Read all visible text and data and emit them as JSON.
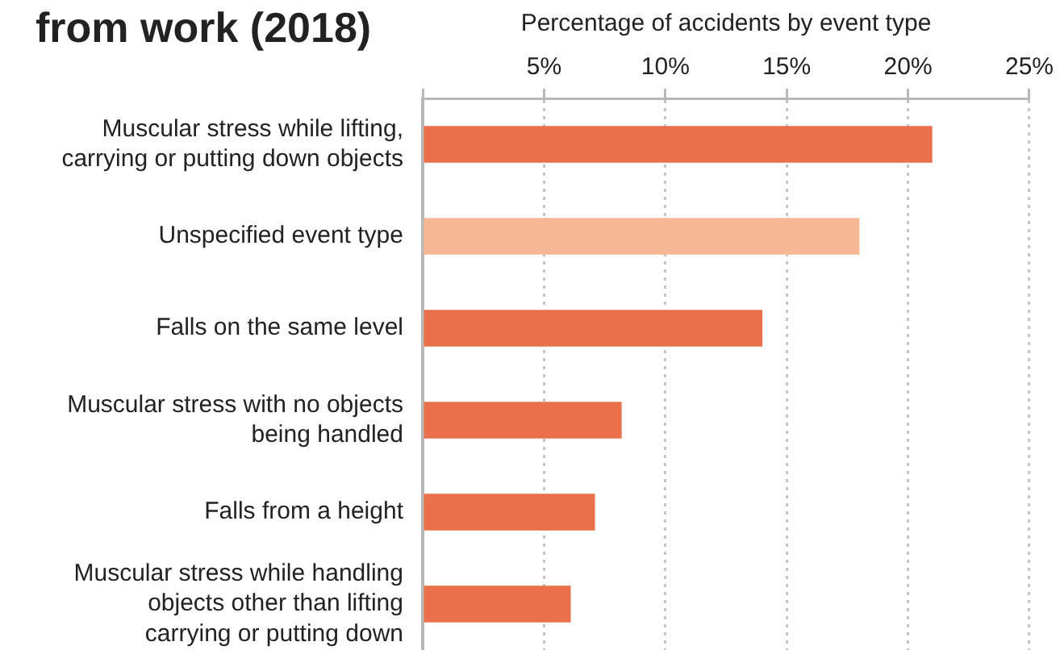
{
  "chart_data": {
    "type": "bar",
    "orientation": "horizontal",
    "title": "from work (2018)",
    "xlabel": "Percentage of accidents by event type",
    "categories": [
      "Muscular stress while lifting, carrying or putting down objects",
      "Unspecified event type",
      "Falls on the same level",
      "Muscular stress with no objects being handled",
      "Falls from a height",
      "Muscular stress while handling objects other than lifting carrying or putting down"
    ],
    "values": [
      21,
      18,
      14,
      8.2,
      7.1,
      6.1
    ],
    "colors": [
      "#e9704a",
      "#f6b795",
      "#e9704a",
      "#e9704a",
      "#e9704a",
      "#e9704a"
    ],
    "xlim": [
      0,
      25
    ],
    "xticks": [
      {
        "value": 0,
        "label": null
      },
      {
        "value": 5,
        "label": "5%"
      },
      {
        "value": 10,
        "label": "10%"
      },
      {
        "value": 15,
        "label": "15%"
      },
      {
        "value": 20,
        "label": "20%"
      },
      {
        "value": 25,
        "label": "25%"
      }
    ],
    "grid": "x"
  }
}
